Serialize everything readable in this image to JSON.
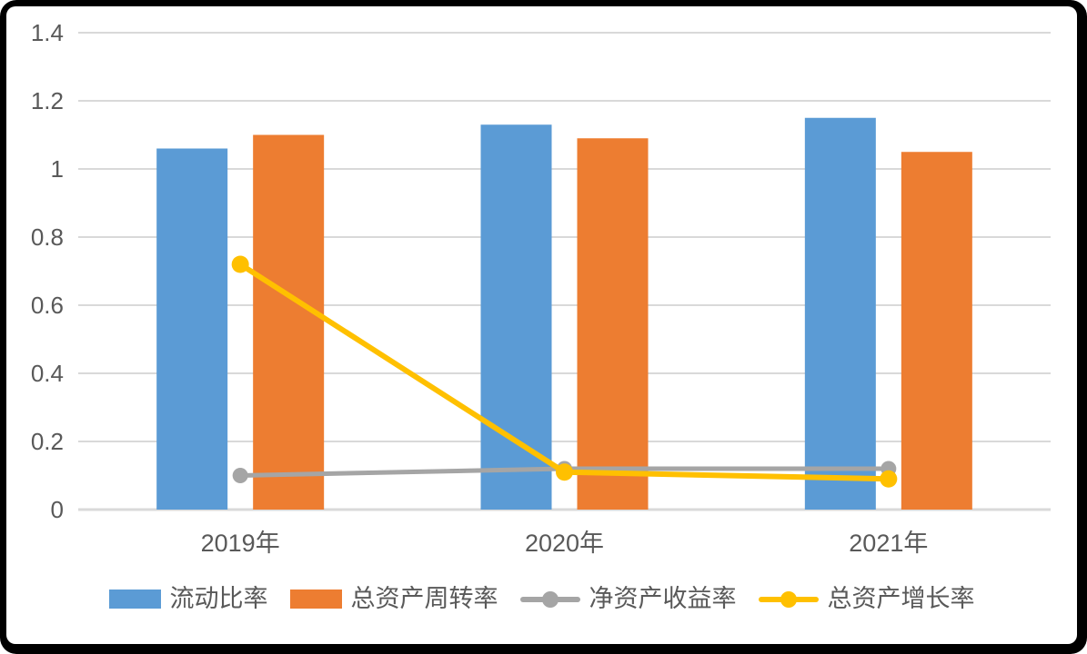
{
  "frame": {
    "border_color": "#000000",
    "canvas_background": "#ffffff"
  },
  "chart_data": {
    "type": "bar",
    "subtype": "combo-bar-line",
    "title": "",
    "xlabel": "",
    "ylabel": "",
    "categories": [
      "2019年",
      "2020年",
      "2021年"
    ],
    "bar_series": [
      {
        "name": "流动比率",
        "color": "#5B9BD5",
        "values": [
          1.06,
          1.13,
          1.15
        ]
      },
      {
        "name": "总资产周转率",
        "color": "#ED7D31",
        "values": [
          1.1,
          1.09,
          1.05
        ]
      }
    ],
    "line_series": [
      {
        "name": "净资产收益率",
        "color": "#A5A5A5",
        "values": [
          0.1,
          0.12,
          0.12
        ]
      },
      {
        "name": "总资产增长率",
        "color": "#FFC000",
        "values": [
          0.72,
          0.11,
          0.09
        ]
      }
    ],
    "ylim": [
      0,
      1.4
    ],
    "ytick_step": 0.2,
    "ytick_labels": [
      "0",
      "0.2",
      "0.4",
      "0.6",
      "0.8",
      "1",
      "1.2",
      "1.4"
    ],
    "grid": true,
    "gridline_color": "#D9D9D9",
    "axis_line_color": "#D9D9D9",
    "tick_label_color": "#595959",
    "legend_position": "bottom"
  }
}
